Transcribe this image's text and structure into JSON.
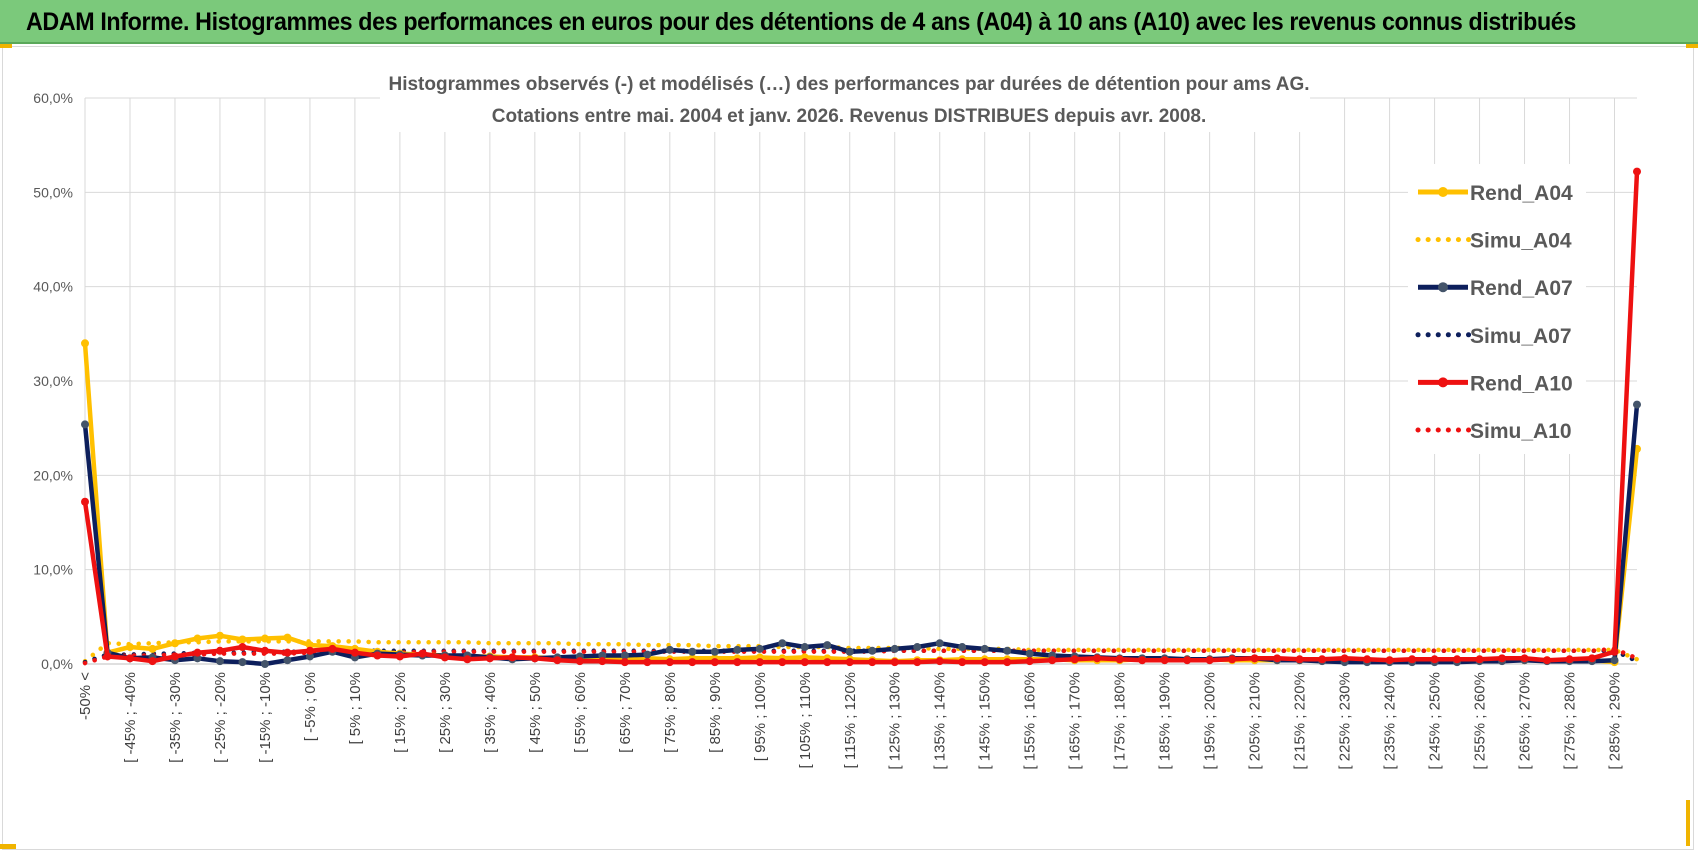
{
  "header": {
    "title": "ADAM Informe. Histogrammes des performances en euros pour des détentions de 4 ans (A04) à 10 ans (A10) avec les revenus connus distribués"
  },
  "chart_data": {
    "type": "line",
    "title": "Histogrammes observés (-) et modélisés (…) des performances par durées de détention pour ams AG.",
    "subtitle": "Cotations entre mai. 2004 et janv. 2026. Revenus DISTRIBUES depuis avr. 2008.",
    "xlabel": "",
    "ylabel": "",
    "ylim": [
      0,
      60
    ],
    "yticks": [
      "0,0%",
      "10,0%",
      "20,0%",
      "30,0%",
      "40,0%",
      "50,0%",
      "60,0%"
    ],
    "grid": true,
    "legend_position": "right",
    "x_labels": [
      "-50% <",
      "[ -45% ; -40%",
      "[ -35% ; -30%",
      "[ -25% ; -20%",
      "[ -15% ; -10%",
      "[ -5% ; 0%",
      "[ 5% ; 10%",
      "[ 15% ; 20%",
      "[ 25% ; 30%",
      "[ 35% ; 40%",
      "[ 45% ; 50%",
      "[ 55% ; 60%",
      "[ 65% ; 70%",
      "[ 75% ; 80%",
      "[ 85% ; 90%",
      "[ 95% ; 100%",
      "[ 105% ; 110%",
      "[ 115% ; 120%",
      "[ 125% ; 130%",
      "[ 135% ; 140%",
      "[ 145% ; 150%",
      "[ 155% ; 160%",
      "[ 165% ; 170%",
      "[ 175% ; 180%",
      "[ 185% ; 190%",
      "[ 195% ; 200%",
      "[ 205% ; 210%",
      "[ 215% ; 220%",
      "[ 225% ; 230%",
      "[ 235% ; 240%",
      "[ 245% ; 250%",
      "[ 255% ; 260%",
      "[ 265% ; 270%",
      "[ 275% ; 280%",
      "[ 285% ; 290%"
    ],
    "x_label_positions": [
      0,
      2,
      4,
      6,
      8,
      10,
      12,
      14,
      16,
      18,
      20,
      22,
      24,
      26,
      28,
      30,
      32,
      34,
      36,
      38,
      40,
      42,
      44,
      46,
      48,
      50,
      52,
      54,
      56,
      58,
      60,
      62,
      64,
      66,
      68
    ],
    "n_points": 70,
    "series": [
      {
        "name": "Rend_A04",
        "style": "solid",
        "color": "#ffc000",
        "values": [
          34,
          1.2,
          1.8,
          1.6,
          2.2,
          2.7,
          3.0,
          2.6,
          2.7,
          2.8,
          2.0,
          1.9,
          1.6,
          1.3,
          1.1,
          1.0,
          0.9,
          0.8,
          0.8,
          0.7,
          0.7,
          0.6,
          0.7,
          0.6,
          0.6,
          0.6,
          0.5,
          0.6,
          0.6,
          0.6,
          0.7,
          0.6,
          0.7,
          0.6,
          0.5,
          0.4,
          0.3,
          0.4,
          0.4,
          0.5,
          0.5,
          0.5,
          0.5,
          0.5,
          0.4,
          0.4,
          0.4,
          0.5,
          0.5,
          0.5,
          0.5,
          0.4,
          0.4,
          0.4,
          0.4,
          0.4,
          0.4,
          0.4,
          0.4,
          0.4,
          0.4,
          0.4,
          0.4,
          0.4,
          0.4,
          0.4,
          0.4,
          0.4,
          0.2,
          22.8
        ]
      },
      {
        "name": "Simu_A04",
        "style": "dotted",
        "color": "#ffc000",
        "values": [
          0.3,
          2.2,
          2.1,
          2.2,
          2.3,
          2.3,
          2.4,
          2.4,
          2.4,
          2.4,
          2.4,
          2.4,
          2.4,
          2.3,
          2.3,
          2.3,
          2.3,
          2.3,
          2.2,
          2.2,
          2.2,
          2.2,
          2.1,
          2.1,
          2.1,
          2.0,
          2.0,
          2.0,
          1.9,
          1.9,
          1.9,
          1.8,
          1.8,
          1.8,
          1.7,
          1.7,
          1.7,
          1.7,
          1.6,
          1.6,
          1.6,
          1.6,
          1.5,
          1.5,
          1.5,
          1.5,
          1.5,
          1.5,
          1.5,
          1.5,
          1.5,
          1.5,
          1.5,
          1.5,
          1.5,
          1.5,
          1.5,
          1.5,
          1.5,
          1.5,
          1.5,
          1.5,
          1.5,
          1.5,
          1.5,
          1.5,
          1.5,
          1.5,
          1.5,
          0.5
        ]
      },
      {
        "name": "Rend_A07",
        "style": "solid",
        "color": "#0d1f5c",
        "values": [
          25.4,
          1.2,
          0.6,
          0.7,
          0.4,
          0.6,
          0.3,
          0.2,
          0.0,
          0.4,
          0.8,
          1.3,
          0.7,
          1.1,
          1.0,
          0.9,
          0.9,
          0.9,
          0.7,
          0.5,
          0.6,
          0.7,
          0.8,
          0.9,
          0.9,
          1.0,
          1.5,
          1.3,
          1.3,
          1.5,
          1.6,
          2.2,
          1.8,
          2.0,
          1.3,
          1.4,
          1.6,
          1.8,
          2.2,
          1.8,
          1.6,
          1.4,
          1.1,
          0.9,
          0.8,
          0.7,
          0.6,
          0.6,
          0.6,
          0.5,
          0.5,
          0.6,
          0.6,
          0.4,
          0.4,
          0.3,
          0.2,
          0.2,
          0.2,
          0.2,
          0.2,
          0.2,
          0.3,
          0.3,
          0.4,
          0.3,
          0.3,
          0.3,
          0.4,
          27.5
        ]
      },
      {
        "name": "Simu_A07",
        "style": "dotted",
        "color": "#0d1f5c",
        "values": [
          0.2,
          1.0,
          1.0,
          1.1,
          1.1,
          1.2,
          1.2,
          1.2,
          1.3,
          1.3,
          1.3,
          1.3,
          1.4,
          1.4,
          1.4,
          1.4,
          1.4,
          1.4,
          1.4,
          1.4,
          1.4,
          1.4,
          1.4,
          1.4,
          1.4,
          1.4,
          1.4,
          1.4,
          1.4,
          1.4,
          1.4,
          1.4,
          1.4,
          1.4,
          1.4,
          1.4,
          1.4,
          1.4,
          1.4,
          1.4,
          1.4,
          1.4,
          1.4,
          1.4,
          1.4,
          1.4,
          1.4,
          1.4,
          1.4,
          1.4,
          1.4,
          1.4,
          1.4,
          1.4,
          1.4,
          1.4,
          1.4,
          1.4,
          1.4,
          1.4,
          1.4,
          1.4,
          1.4,
          1.4,
          1.4,
          1.4,
          1.4,
          1.4,
          1.4,
          0.3
        ]
      },
      {
        "name": "Rend_A10",
        "style": "solid",
        "color": "#ee1111",
        "values": [
          17.2,
          0.8,
          0.6,
          0.3,
          0.8,
          1.2,
          1.4,
          1.8,
          1.4,
          1.2,
          1.4,
          1.6,
          1.2,
          0.9,
          0.8,
          1.1,
          0.7,
          0.5,
          0.6,
          0.7,
          0.6,
          0.4,
          0.3,
          0.3,
          0.2,
          0.2,
          0.2,
          0.2,
          0.2,
          0.2,
          0.2,
          0.2,
          0.2,
          0.2,
          0.2,
          0.2,
          0.2,
          0.2,
          0.3,
          0.2,
          0.2,
          0.2,
          0.3,
          0.4,
          0.5,
          0.6,
          0.5,
          0.4,
          0.4,
          0.4,
          0.4,
          0.5,
          0.6,
          0.6,
          0.5,
          0.5,
          0.6,
          0.5,
          0.4,
          0.5,
          0.5,
          0.5,
          0.5,
          0.6,
          0.6,
          0.4,
          0.5,
          0.6,
          1.3,
          52.2
        ]
      },
      {
        "name": "Simu_A10",
        "style": "dotted",
        "color": "#ee1111",
        "values": [
          0.1,
          0.8,
          0.9,
          0.9,
          1.0,
          1.0,
          1.1,
          1.1,
          1.1,
          1.1,
          1.2,
          1.2,
          1.2,
          1.2,
          1.2,
          1.3,
          1.3,
          1.3,
          1.3,
          1.3,
          1.3,
          1.3,
          1.3,
          1.3,
          1.3,
          1.3,
          1.3,
          1.3,
          1.3,
          1.3,
          1.3,
          1.3,
          1.3,
          1.3,
          1.3,
          1.3,
          1.4,
          1.4,
          1.4,
          1.4,
          1.4,
          1.4,
          1.4,
          1.4,
          1.4,
          1.4,
          1.4,
          1.4,
          1.4,
          1.4,
          1.4,
          1.4,
          1.4,
          1.4,
          1.4,
          1.4,
          1.4,
          1.4,
          1.4,
          1.4,
          1.4,
          1.4,
          1.4,
          1.4,
          1.4,
          1.4,
          1.4,
          1.4,
          1.6,
          0.6
        ]
      }
    ]
  }
}
